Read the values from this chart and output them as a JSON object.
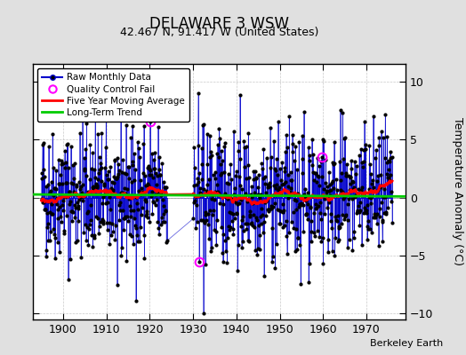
{
  "title": "DELAWARE 3 WSW",
  "subtitle": "42.467 N, 91.417 W (United States)",
  "ylabel": "Temperature Anomaly (°C)",
  "credit": "Berkeley Earth",
  "ylim": [
    -10.5,
    11.5
  ],
  "xlim": [
    1893,
    1979
  ],
  "yticks": [
    -10,
    -5,
    0,
    5,
    10
  ],
  "xticks": [
    1900,
    1910,
    1920,
    1930,
    1940,
    1950,
    1960,
    1970
  ],
  "start_year": 1895,
  "end_year": 1975,
  "gap_start": 1924,
  "gap_end": 1929,
  "fig_bg_color": "#e0e0e0",
  "plot_bg_color": "#ffffff",
  "raw_line_color": "#0000cc",
  "raw_marker_color": "#000000",
  "moving_avg_color": "#ff0000",
  "trend_color": "#00cc00",
  "qc_fail_color": "#ff00ff",
  "seed": 42,
  "long_term_trend_slope": -0.002,
  "long_term_trend_intercept": 0.18,
  "noise_std": 2.8
}
